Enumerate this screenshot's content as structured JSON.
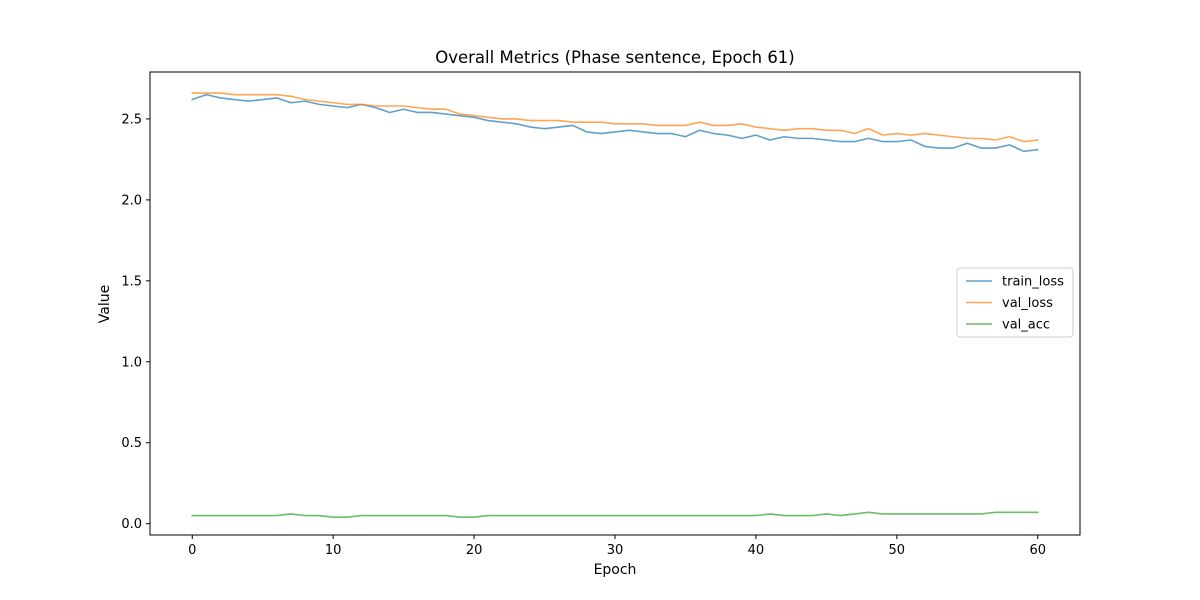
{
  "chart_data": {
    "type": "line",
    "title": "Overall Metrics (Phase sentence, Epoch 61)",
    "xlabel": "Epoch",
    "ylabel": "Value",
    "xlim": [
      -3,
      63
    ],
    "ylim": [
      -0.07,
      2.79
    ],
    "xticks": [
      0,
      10,
      20,
      30,
      40,
      50,
      60
    ],
    "yticks": [
      0.0,
      0.5,
      1.0,
      1.5,
      2.0,
      2.5
    ],
    "ytick_labels": [
      "0.0",
      "0.5",
      "1.0",
      "1.5",
      "2.0",
      "2.5"
    ],
    "grid": false,
    "legend_position": "center-right",
    "series": [
      {
        "name": "train_loss",
        "color": "#1f77b4",
        "values": [
          2.62,
          2.65,
          2.63,
          2.62,
          2.61,
          2.62,
          2.63,
          2.6,
          2.61,
          2.59,
          2.58,
          2.57,
          2.59,
          2.57,
          2.54,
          2.56,
          2.54,
          2.54,
          2.53,
          2.52,
          2.51,
          2.49,
          2.48,
          2.47,
          2.45,
          2.44,
          2.45,
          2.46,
          2.42,
          2.41,
          2.42,
          2.43,
          2.42,
          2.41,
          2.41,
          2.39,
          2.43,
          2.41,
          2.4,
          2.38,
          2.4,
          2.37,
          2.39,
          2.38,
          2.38,
          2.37,
          2.36,
          2.36,
          2.38,
          2.36,
          2.36,
          2.37,
          2.33,
          2.32,
          2.32,
          2.35,
          2.32,
          2.32,
          2.34,
          2.3,
          2.31
        ]
      },
      {
        "name": "val_loss",
        "color": "#ff7f0e",
        "values": [
          2.66,
          2.66,
          2.66,
          2.65,
          2.65,
          2.65,
          2.65,
          2.64,
          2.62,
          2.61,
          2.6,
          2.59,
          2.59,
          2.58,
          2.58,
          2.58,
          2.57,
          2.56,
          2.56,
          2.53,
          2.52,
          2.51,
          2.5,
          2.5,
          2.49,
          2.49,
          2.49,
          2.48,
          2.48,
          2.48,
          2.47,
          2.47,
          2.47,
          2.46,
          2.46,
          2.46,
          2.48,
          2.46,
          2.46,
          2.47,
          2.45,
          2.44,
          2.43,
          2.44,
          2.44,
          2.43,
          2.43,
          2.41,
          2.44,
          2.4,
          2.41,
          2.4,
          2.41,
          2.4,
          2.39,
          2.38,
          2.38,
          2.37,
          2.39,
          2.36,
          2.37
        ]
      },
      {
        "name": "val_acc",
        "color": "#2ca02c",
        "values": [
          0.05,
          0.05,
          0.05,
          0.05,
          0.05,
          0.05,
          0.05,
          0.06,
          0.05,
          0.05,
          0.04,
          0.04,
          0.05,
          0.05,
          0.05,
          0.05,
          0.05,
          0.05,
          0.05,
          0.04,
          0.04,
          0.05,
          0.05,
          0.05,
          0.05,
          0.05,
          0.05,
          0.05,
          0.05,
          0.05,
          0.05,
          0.05,
          0.05,
          0.05,
          0.05,
          0.05,
          0.05,
          0.05,
          0.05,
          0.05,
          0.05,
          0.06,
          0.05,
          0.05,
          0.05,
          0.06,
          0.05,
          0.06,
          0.07,
          0.06,
          0.06,
          0.06,
          0.06,
          0.06,
          0.06,
          0.06,
          0.06,
          0.07,
          0.07,
          0.07,
          0.07
        ]
      }
    ]
  }
}
